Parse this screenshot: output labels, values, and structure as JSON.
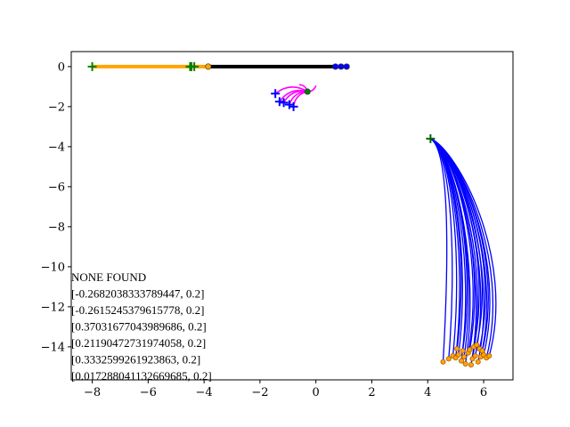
{
  "chart_data": {
    "type": "line",
    "title": "",
    "xlabel": "",
    "ylabel": "",
    "xlim": [
      -8.75,
      7.05
    ],
    "ylim": [
      -15.65,
      0.75
    ],
    "grid": false,
    "legend": "none",
    "x_ticks": [
      {
        "v": -8,
        "label": "−8"
      },
      {
        "v": -6,
        "label": "−6"
      },
      {
        "v": -4,
        "label": "−4"
      },
      {
        "v": -2,
        "label": "−2"
      },
      {
        "v": 0,
        "label": "0"
      },
      {
        "v": 2,
        "label": "2"
      },
      {
        "v": 4,
        "label": "4"
      },
      {
        "v": 6,
        "label": "6"
      }
    ],
    "y_ticks": [
      {
        "v": 0,
        "label": "0"
      },
      {
        "v": -2,
        "label": "−2"
      },
      {
        "v": -4,
        "label": "−4"
      },
      {
        "v": -6,
        "label": "−6"
      },
      {
        "v": -8,
        "label": "−8"
      },
      {
        "v": -10,
        "label": "−10"
      },
      {
        "v": -12,
        "label": "−12"
      },
      {
        "v": -14,
        "label": "−14"
      }
    ],
    "colors": {
      "orange": "#ffa500",
      "black": "#000000",
      "blue": "#0000ff",
      "magenta": "#ff00ff",
      "green": "#008000",
      "darkgreen": "#006400",
      "dark_orange_edge": "#b06000"
    },
    "segments": [
      {
        "name": "orange",
        "color": "#ffa500",
        "from": [
          -8.0,
          0.0
        ],
        "to": [
          -3.85,
          0.0
        ],
        "width": 4
      },
      {
        "name": "black",
        "color": "#000000",
        "from": [
          -3.85,
          0.0
        ],
        "to": [
          0.8,
          0.0
        ],
        "width": 4
      },
      {
        "name": "blue",
        "color": "#0000ff",
        "from": [
          0.6,
          0.0
        ],
        "to": [
          1.2,
          0.0
        ],
        "width": 4
      }
    ],
    "point_markers": [
      {
        "type": "plus",
        "color": "#008000",
        "x": -8.0,
        "y": 0.0
      },
      {
        "type": "plus",
        "color": "#008000",
        "x": -4.5,
        "y": 0.0
      },
      {
        "type": "plus",
        "color": "#008000",
        "x": -4.35,
        "y": 0.0
      },
      {
        "type": "plus",
        "color": "#008000",
        "x": -4.45,
        "y": 0.0
      },
      {
        "type": "circle",
        "color": "#ffa500",
        "x": -3.85,
        "y": 0.0
      },
      {
        "type": "circle",
        "color": "#0000ff",
        "x": 0.7,
        "y": 0.0
      },
      {
        "type": "circle",
        "color": "#0000ff",
        "x": 0.9,
        "y": 0.0
      },
      {
        "type": "circle",
        "color": "#0000ff",
        "x": 1.1,
        "y": 0.0
      },
      {
        "type": "plus",
        "color": "#0000ff",
        "x": -1.45,
        "y": -1.35
      },
      {
        "type": "plus",
        "color": "#0000ff",
        "x": -1.3,
        "y": -1.75
      },
      {
        "type": "plus",
        "color": "#0000ff",
        "x": -1.15,
        "y": -1.8
      },
      {
        "type": "plus",
        "color": "#0000ff",
        "x": -0.95,
        "y": -1.9
      },
      {
        "type": "plus",
        "color": "#0000ff",
        "x": -0.8,
        "y": -2.0
      },
      {
        "type": "circle",
        "color": "#008000",
        "x": -0.3,
        "y": -1.25
      },
      {
        "type": "plus",
        "color": "#006400",
        "x": 4.1,
        "y": -3.6
      }
    ],
    "fan_groups": [
      {
        "name": "magenta",
        "color": "#ff00ff",
        "start": [
          -0.3,
          -1.25
        ],
        "ends": [
          [
            -1.45,
            -1.35
          ],
          [
            -1.3,
            -1.75
          ],
          [
            -1.15,
            -1.8
          ],
          [
            -0.95,
            -1.9
          ],
          [
            -0.8,
            -2.0
          ],
          [
            -0.0,
            -0.95
          ],
          [
            -0.6,
            -0.9
          ]
        ],
        "bend": 0.35
      },
      {
        "name": "blue",
        "color": "#0000ff",
        "start": [
          4.1,
          -3.6
        ],
        "ends": [
          [
            4.55,
            -14.75
          ],
          [
            4.75,
            -14.6
          ],
          [
            4.9,
            -14.45
          ],
          [
            5.0,
            -14.55
          ],
          [
            5.1,
            -14.4
          ],
          [
            5.2,
            -14.7
          ],
          [
            5.3,
            -14.5
          ],
          [
            5.35,
            -14.85
          ],
          [
            5.45,
            -14.3
          ],
          [
            5.55,
            -14.9
          ],
          [
            5.6,
            -14.6
          ],
          [
            5.7,
            -14.45
          ],
          [
            5.8,
            -14.75
          ],
          [
            5.85,
            -14.1
          ],
          [
            5.9,
            -14.5
          ],
          [
            6.0,
            -14.4
          ],
          [
            6.1,
            -14.55
          ],
          [
            6.2,
            -14.45
          ],
          [
            5.5,
            -14.15
          ],
          [
            5.65,
            -14.0
          ],
          [
            5.75,
            -13.9
          ],
          [
            5.95,
            -14.2
          ],
          [
            5.25,
            -14.2
          ],
          [
            5.05,
            -14.1
          ]
        ],
        "bend": 1.0
      }
    ],
    "end_markers": {
      "shape": "circle",
      "face": "#ffa500",
      "edge": "#b06000"
    },
    "annotations": [
      "NONE FOUND",
      "[-0.2682038333789447, 0.2]",
      "[-0.2615245379615778, 0.2]",
      "[0.37031677043989686, 0.2]",
      "[0.21190472731974058, 0.2]",
      "[0.3332599261923863, 0.2]",
      "[0.017288041132669685, 0.2]"
    ]
  }
}
